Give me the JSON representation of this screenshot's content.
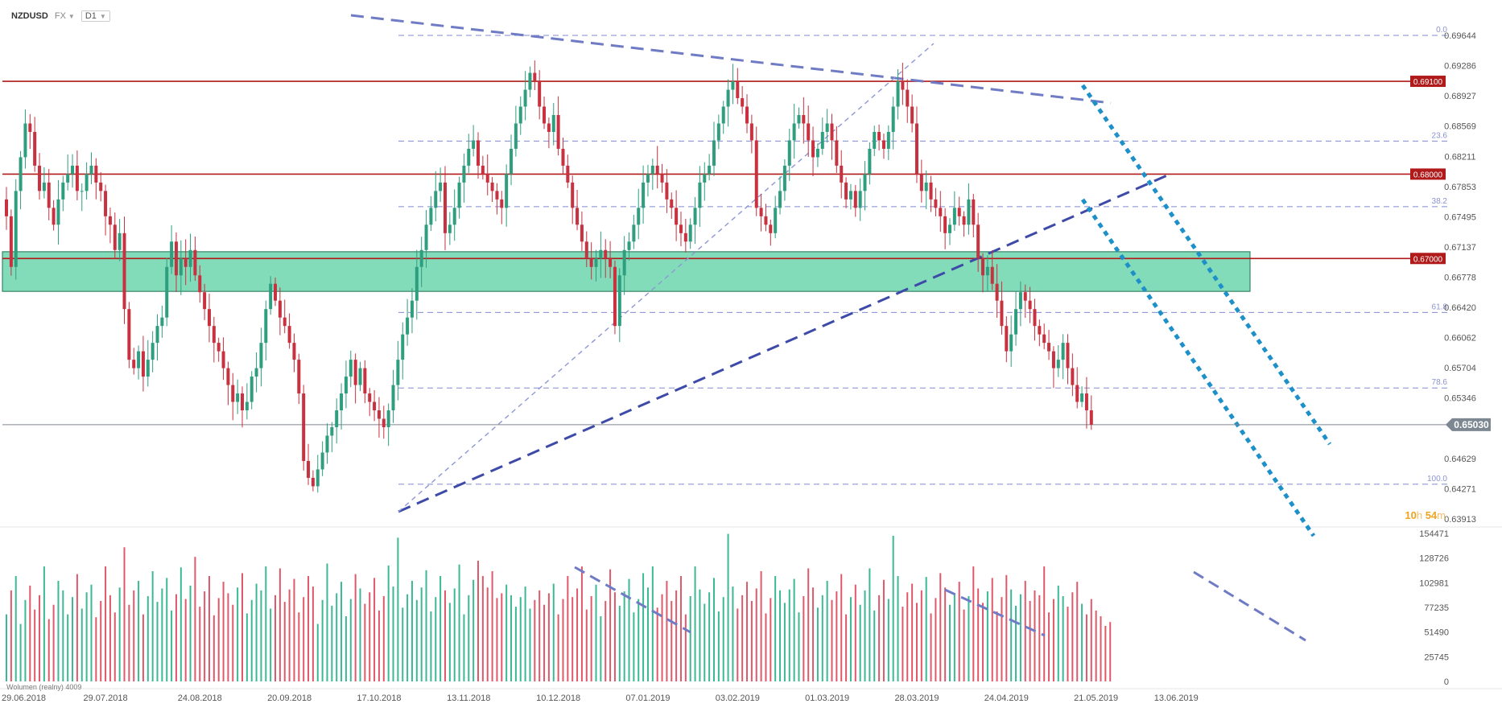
{
  "header": {
    "symbol": "NZDUSD",
    "market": "FX",
    "timeframe": "D1"
  },
  "countdown": {
    "hours": "10",
    "h_unit": "h",
    "minutes": "54",
    "m_unit": "m"
  },
  "volume_label": "Wolumen (realny) 4009",
  "colors": {
    "bull": "#2e9e7f",
    "bear": "#c8313f",
    "volBull": "#3bb894",
    "volBear": "#e0596a",
    "level": "#b01a1a",
    "zone": "#3fca94",
    "fib": "#6b77c9",
    "trend": "#3d4aa8",
    "channel": "#1e90c9",
    "price": "#7d8791"
  },
  "chart_data": {
    "type": "candlestick",
    "symbol": "NZDUSD",
    "price_axis": {
      "min": 0.63913,
      "max": 0.69644,
      "ticks": [
        0.69644,
        0.69286,
        0.68927,
        0.68569,
        0.68211,
        0.67853,
        0.67495,
        0.67137,
        0.66778,
        0.6642,
        0.66062,
        0.65704,
        0.65346,
        0.64987,
        0.64629,
        0.64271,
        0.63913
      ]
    },
    "volume_axis": {
      "min": 0,
      "max": 154471,
      "ticks": [
        154471,
        128726,
        102981,
        77235,
        51490,
        25745,
        0
      ]
    },
    "date_axis": [
      "29.06.2018",
      "29.07.2018",
      "24.08.2018",
      "20.09.2018",
      "17.10.2018",
      "13.11.2018",
      "10.12.2018",
      "07.01.2019",
      "03.02.2019",
      "01.03.2019",
      "28.03.2019",
      "24.04.2019",
      "21.05.2019",
      "13.06.2019"
    ],
    "levels": [
      {
        "price": 0.691,
        "label": "0.69100"
      },
      {
        "price": 0.68,
        "label": "0.68000"
      },
      {
        "price": 0.67,
        "label": "0.67000"
      }
    ],
    "fib_levels": [
      {
        "label": "0.0",
        "price": 0.69644
      },
      {
        "label": "23.6",
        "price": 0.68391
      },
      {
        "label": "38.2",
        "price": 0.67614
      },
      {
        "label": "61.8",
        "price": 0.6636
      },
      {
        "label": "78.6",
        "price": 0.65465
      },
      {
        "label": "100.0",
        "price": 0.64324
      }
    ],
    "zone": {
      "from": 0.6661,
      "to": 0.6708
    },
    "last_price": {
      "value": 0.6503,
      "label": "0.65030"
    },
    "anchors": [
      {
        "d": "29.06.2018",
        "i": 0
      },
      {
        "d": "29.07.2018",
        "i": 21
      },
      {
        "d": "24.08.2018",
        "i": 41
      },
      {
        "d": "20.09.2018",
        "i": 60
      },
      {
        "d": "17.10.2018",
        "i": 79
      },
      {
        "d": "13.11.2018",
        "i": 98
      },
      {
        "d": "10.12.2018",
        "i": 117
      },
      {
        "d": "07.01.2019",
        "i": 136
      },
      {
        "d": "03.02.2019",
        "i": 155
      },
      {
        "d": "01.03.2019",
        "i": 174
      },
      {
        "d": "28.03.2019",
        "i": 193
      },
      {
        "d": "24.04.2019",
        "i": 212
      },
      {
        "d": "21.05.2019",
        "i": 231
      },
      {
        "d": "13.06.2019",
        "i": 248
      }
    ],
    "closes": [
      0.675,
      0.669,
      0.678,
      0.682,
      0.686,
      0.685,
      0.681,
      0.678,
      0.679,
      0.676,
      0.674,
      0.677,
      0.679,
      0.68,
      0.681,
      0.678,
      0.678,
      0.68,
      0.681,
      0.679,
      0.678,
      0.675,
      0.674,
      0.671,
      0.673,
      0.664,
      0.658,
      0.657,
      0.659,
      0.656,
      0.658,
      0.66,
      0.662,
      0.663,
      0.669,
      0.672,
      0.668,
      0.67,
      0.669,
      0.671,
      0.668,
      0.666,
      0.664,
      0.662,
      0.66,
      0.659,
      0.657,
      0.655,
      0.653,
      0.654,
      0.652,
      0.653,
      0.656,
      0.657,
      0.66,
      0.664,
      0.667,
      0.665,
      0.663,
      0.662,
      0.66,
      0.658,
      0.654,
      0.646,
      0.644,
      0.643,
      0.645,
      0.647,
      0.649,
      0.65,
      0.652,
      0.654,
      0.656,
      0.658,
      0.655,
      0.657,
      0.654,
      0.653,
      0.652,
      0.651,
      0.65,
      0.652,
      0.655,
      0.658,
      0.661,
      0.663,
      0.665,
      0.669,
      0.671,
      0.674,
      0.676,
      0.678,
      0.679,
      0.673,
      0.674,
      0.676,
      0.679,
      0.681,
      0.683,
      0.684,
      0.681,
      0.68,
      0.679,
      0.678,
      0.677,
      0.676,
      0.68,
      0.683,
      0.686,
      0.688,
      0.69,
      0.692,
      0.691,
      0.688,
      0.686,
      0.685,
      0.687,
      0.683,
      0.681,
      0.679,
      0.676,
      0.674,
      0.672,
      0.67,
      0.669,
      0.67,
      0.671,
      0.67,
      0.669,
      0.662,
      0.668,
      0.671,
      0.672,
      0.674,
      0.676,
      0.679,
      0.68,
      0.681,
      0.68,
      0.679,
      0.677,
      0.676,
      0.674,
      0.673,
      0.672,
      0.674,
      0.676,
      0.679,
      0.68,
      0.681,
      0.684,
      0.686,
      0.688,
      0.69,
      0.691,
      0.689,
      0.688,
      0.686,
      0.684,
      0.676,
      0.675,
      0.674,
      0.673,
      0.676,
      0.678,
      0.681,
      0.684,
      0.686,
      0.687,
      0.686,
      0.684,
      0.682,
      0.683,
      0.685,
      0.686,
      0.684,
      0.681,
      0.679,
      0.677,
      0.678,
      0.676,
      0.678,
      0.68,
      0.683,
      0.685,
      0.684,
      0.683,
      0.685,
      0.688,
      0.691,
      0.69,
      0.688,
      0.686,
      0.68,
      0.678,
      0.679,
      0.677,
      0.676,
      0.675,
      0.673,
      0.674,
      0.676,
      0.675,
      0.674,
      0.677,
      0.674,
      0.67,
      0.668,
      0.669,
      0.667,
      0.665,
      0.662,
      0.659,
      0.661,
      0.664,
      0.666,
      0.665,
      0.664,
      0.662,
      0.661,
      0.66,
      0.659,
      0.657,
      0.658,
      0.66,
      0.657,
      0.655,
      0.653,
      0.654,
      0.652,
      0.6503
    ],
    "volumes": [
      70000,
      95000,
      110000,
      60000,
      85000,
      100000,
      75000,
      90000,
      120000,
      65000,
      80000,
      105000,
      95000,
      70000,
      88000,
      112000,
      76000,
      93000,
      101000,
      67000,
      84000,
      120000,
      90000,
      72000,
      98000,
      140000,
      80000,
      95000,
      105000,
      70000,
      89000,
      115000,
      83000,
      97000,
      108000,
      74000,
      91000,
      119000,
      86000,
      100000,
      130000,
      78000,
      94000,
      110000,
      69000,
      87000,
      104000,
      92000,
      80000,
      98000,
      113000,
      71000,
      85000,
      102000,
      95000,
      120000,
      76000,
      90000,
      118000,
      83000,
      96000,
      107000,
      72000,
      88000,
      110000,
      99000,
      60000,
      85000,
      123000,
      79000,
      92000,
      104000,
      68000,
      86000,
      112000,
      97000,
      81000,
      93000,
      108000,
      74000,
      89000,
      121000,
      99000,
      150000,
      77000,
      91000,
      105000,
      85000,
      98000,
      116000,
      73000,
      88000,
      110000,
      95000,
      82000,
      97000,
      122000,
      70000,
      90000,
      106000,
      126000,
      110000,
      98000,
      115000,
      87000,
      92000,
      101000,
      90000,
      78000,
      88000,
      99000,
      76000,
      85000,
      95000,
      80000,
      92000,
      102000,
      70000,
      86000,
      110000,
      88000,
      97000,
      120000,
      75000,
      89000,
      101000,
      68000,
      84000,
      117000,
      93000,
      79000,
      94000,
      107000,
      72000,
      86000,
      113000,
      98000,
      120000,
      77000,
      91000,
      105000,
      84000,
      95000,
      110000,
      70000,
      89000,
      120000,
      96000,
      81000,
      93000,
      108000,
      73000,
      88000,
      154000,
      99000,
      76000,
      90000,
      104000,
      84000,
      97000,
      115000,
      71000,
      87000,
      110000,
      95000,
      82000,
      96000,
      107000,
      72000,
      89000,
      118000,
      98000,
      77000,
      90000,
      105000,
      85000,
      94000,
      112000,
      70000,
      88000,
      101000,
      80000,
      95000,
      118000,
      74000,
      90000,
      106000,
      86000,
      152000,
      110000,
      78000,
      93000,
      102000,
      82000,
      95000,
      109000,
      71000,
      87000,
      113000,
      98000,
      80000,
      92000,
      104000,
      75000,
      89000,
      120000,
      97000,
      82000,
      94000,
      108000,
      73000,
      88000,
      111000,
      96000,
      79000,
      91000,
      105000,
      84000,
      95000,
      90000,
      120000,
      72000,
      86000,
      100000,
      89000,
      78000,
      93000,
      104000,
      81000,
      70000,
      86000,
      74000,
      68000,
      58000,
      62000
    ]
  }
}
